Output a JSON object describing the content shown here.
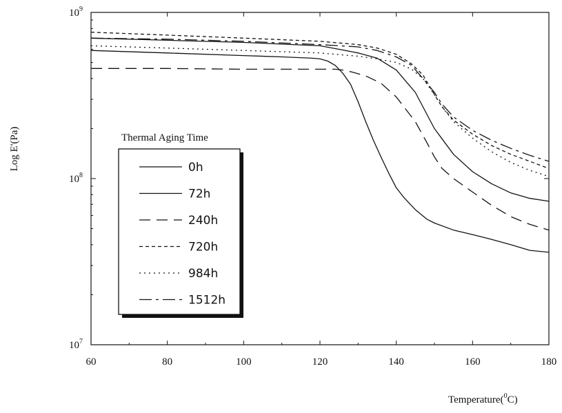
{
  "chart_data": {
    "type": "line",
    "title": "",
    "xlabel": "Temperature(0C)",
    "xlabel_main": "Temperature(",
    "xlabel_sup": "0",
    "xlabel_end": "C)",
    "ylabel": "Log E'(Pa)",
    "xlim": [
      60,
      180
    ],
    "ylim": [
      10000000,
      1000000000
    ],
    "yscale": "log",
    "grid": false,
    "x_ticks": [
      60,
      80,
      100,
      120,
      140,
      160,
      180
    ],
    "x_tick_labels": [
      "60",
      "80",
      "100",
      "120",
      "140",
      "160",
      "180"
    ],
    "y_ticks": [
      10000000,
      100000000,
      1000000000
    ],
    "y_tick_labels": [
      {
        "base": "10",
        "exp": "7"
      },
      {
        "base": "10",
        "exp": "8"
      },
      {
        "base": "10",
        "exp": "9"
      }
    ],
    "legend": {
      "title": "Thermal Aging Time",
      "placement": "left-center"
    },
    "series": [
      {
        "name": "0h",
        "dash": "solid",
        "x": [
          60,
          80,
          100,
          110,
          118,
          120,
          122,
          124,
          126,
          128,
          130,
          132,
          134,
          136,
          138,
          140,
          142,
          145,
          148,
          150,
          155,
          160,
          165,
          170,
          175,
          180
        ],
        "y": [
          590000000,
          570000000,
          550000000,
          540000000,
          530000000,
          525000000,
          510000000,
          480000000,
          430000000,
          370000000,
          290000000,
          220000000,
          170000000,
          135000000,
          108000000,
          88000000,
          77000000,
          65000000,
          57000000,
          54000000,
          49000000,
          46000000,
          43000000,
          40000000,
          37000000,
          36000000
        ]
      },
      {
        "name": "72h",
        "dash": "long-solid",
        "x": [
          60,
          80,
          100,
          120,
          125,
          130,
          135,
          140,
          145,
          150,
          155,
          160,
          165,
          170,
          175,
          180
        ],
        "y": [
          700000000,
          680000000,
          660000000,
          630000000,
          600000000,
          570000000,
          530000000,
          450000000,
          330000000,
          200000000,
          140000000,
          110000000,
          93000000,
          82000000,
          76000000,
          73000000
        ]
      },
      {
        "name": "240h",
        "dash": "dashed",
        "x": [
          60,
          80,
          100,
          120,
          124,
          126,
          128,
          132,
          136,
          140,
          145,
          148,
          150,
          152,
          155,
          160,
          165,
          170,
          175,
          180
        ],
        "y": [
          460000000,
          460000000,
          455000000,
          455000000,
          455000000,
          450000000,
          440000000,
          415000000,
          375000000,
          310000000,
          220000000,
          165000000,
          135000000,
          115000000,
          100000000,
          83000000,
          69000000,
          59000000,
          53000000,
          49000000
        ]
      },
      {
        "name": "720h",
        "dash": "short-dash",
        "x": [
          60,
          80,
          100,
          120,
          130,
          135,
          140,
          144,
          147,
          150,
          152,
          155,
          160,
          165,
          170,
          175,
          180
        ],
        "y": [
          760000000,
          730000000,
          700000000,
          670000000,
          640000000,
          610000000,
          560000000,
          490000000,
          420000000,
          320000000,
          270000000,
          225000000,
          185000000,
          158000000,
          140000000,
          127000000,
          115000000
        ]
      },
      {
        "name": "984h",
        "dash": "dotted",
        "x": [
          60,
          80,
          100,
          120,
          130,
          135,
          140,
          144,
          147,
          150,
          152,
          155,
          160,
          165,
          170,
          175,
          180
        ],
        "y": [
          630000000,
          610000000,
          590000000,
          570000000,
          545000000,
          525000000,
          500000000,
          455000000,
          400000000,
          320000000,
          270000000,
          220000000,
          175000000,
          145000000,
          125000000,
          112000000,
          103000000
        ]
      },
      {
        "name": "1512h",
        "dash": "dash-dot",
        "x": [
          60,
          80,
          100,
          120,
          130,
          135,
          140,
          144,
          147,
          150,
          152,
          155,
          160,
          165,
          170,
          175,
          180
        ],
        "y": [
          700000000,
          690000000,
          670000000,
          640000000,
          620000000,
          590000000,
          540000000,
          480000000,
          400000000,
          330000000,
          280000000,
          235000000,
          195000000,
          170000000,
          152000000,
          138000000,
          127000000
        ]
      }
    ]
  }
}
